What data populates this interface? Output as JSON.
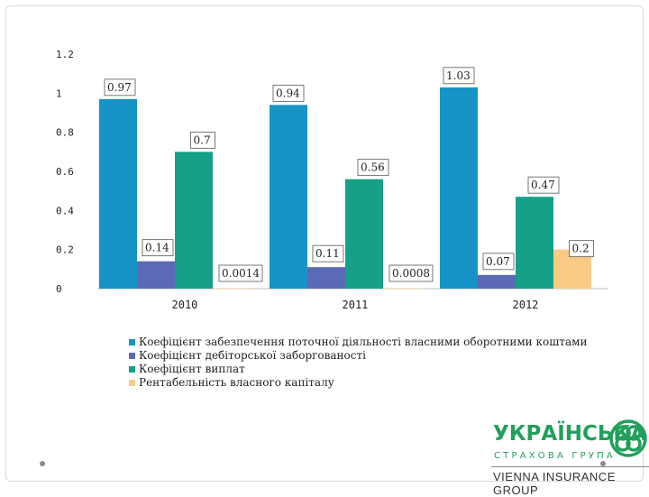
{
  "chart_data": {
    "type": "bar",
    "categories": [
      "2010",
      "2011",
      "2012"
    ],
    "series": [
      {
        "name": "Коефіцієнт забезпечення поточної діяльності власними оборотними коштами",
        "color": "#1694c8",
        "values": [
          0.97,
          0.94,
          1.03
        ],
        "labels": [
          "0.97",
          "0.94",
          "1.03"
        ]
      },
      {
        "name": "Коефіцієнт дебіторської заборгованості",
        "color": "#5a6ab5",
        "values": [
          0.14,
          0.11,
          0.07
        ],
        "labels": [
          "0.14",
          "0.11",
          "0.07"
        ]
      },
      {
        "name": "Коефіцієнт виплат",
        "color": "#16a088",
        "values": [
          0.7,
          0.56,
          0.47
        ],
        "labels": [
          "0.7",
          "0.56",
          "0.47"
        ]
      },
      {
        "name": "Рентабельність власного капіталу",
        "color": "#fbcb86",
        "values": [
          0.0014,
          0.0008,
          0.2
        ],
        "labels": [
          "0.0014",
          "0.0008",
          "0.2"
        ]
      }
    ],
    "yticks": [
      "0",
      "0.2",
      "0.4",
      "0.6",
      "0.8",
      "1",
      "1.2"
    ],
    "ylim": [
      0,
      1.2
    ],
    "legend_position": "bottom",
    "title": "",
    "xlabel": "",
    "ylabel": ""
  },
  "logo": {
    "line1": "УКРАЇНСЬКА",
    "line2": "СТРАХОВА ГРУПА",
    "line3": "VIENNA INSURANCE GROUP",
    "color": "#21a05b"
  }
}
